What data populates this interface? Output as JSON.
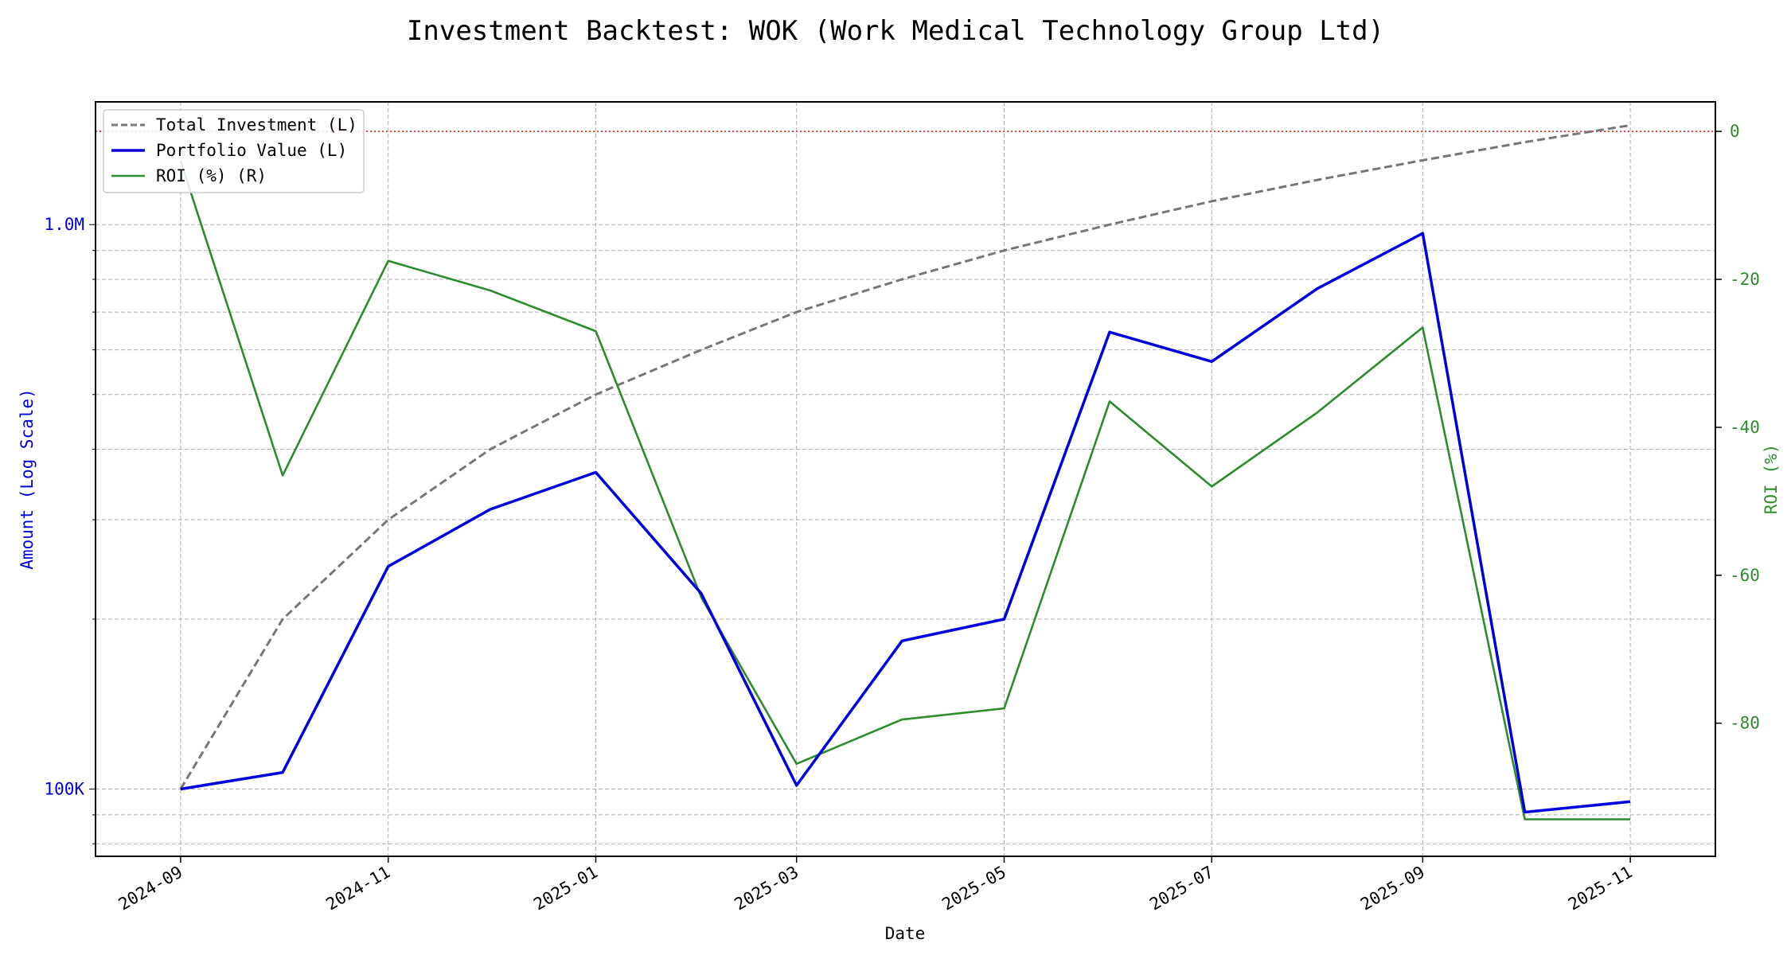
{
  "chart_data": {
    "type": "line",
    "title": "Investment Backtest: WOK (Work Medical Technology Group Ltd)",
    "xlabel": "Date",
    "ylabel_left": "Amount (Log Scale)",
    "ylabel_right": "ROI (%)",
    "y_left_scale": "log",
    "y_left_range": [
      76000,
      1650000
    ],
    "y_right_range": [
      -98,
      4
    ],
    "x_range": [
      "2024-08-07",
      "2025-11-26"
    ],
    "x_ticks": [
      "2024-09",
      "2024-11",
      "2025-01",
      "2025-03",
      "2025-05",
      "2025-07",
      "2025-09",
      "2025-11"
    ],
    "y_left_ticks": [
      {
        "value": 100000,
        "label": "100K"
      },
      {
        "value": 1000000,
        "label": "1.0M"
      }
    ],
    "y_right_ticks": [
      0,
      -20,
      -40,
      -60,
      -80
    ],
    "grid": true,
    "legend_position": "top-left",
    "reference_line": {
      "axis": "right",
      "value": 0,
      "color": "#ff0000",
      "style": "dotted"
    },
    "x": [
      "2024-09-01",
      "2024-10-01",
      "2024-11-01",
      "2024-12-01",
      "2025-01-01",
      "2025-02-01",
      "2025-03-01",
      "2025-04-01",
      "2025-05-01",
      "2025-06-01",
      "2025-07-01",
      "2025-08-01",
      "2025-09-01",
      "2025-10-01",
      "2025-11-01"
    ],
    "series": [
      {
        "name": "Total Investment (L)",
        "axis": "left",
        "color": "#777777",
        "style": "dashed",
        "values": [
          100000,
          200000,
          300000,
          400000,
          500000,
          600000,
          700000,
          800000,
          900000,
          1000000,
          1100000,
          1200000,
          1300000,
          1400000,
          1500000
        ]
      },
      {
        "name": "Portfolio Value (L)",
        "axis": "left",
        "color": "#0000dd",
        "style": "solid",
        "values": [
          100000,
          107000,
          248000,
          313000,
          364000,
          222000,
          101500,
          183000,
          200000,
          645000,
          572000,
          770000,
          965000,
          91000,
          95000
        ]
      },
      {
        "name": "ROI (%) (R)",
        "axis": "right",
        "color": "#2e8b2e",
        "style": "solid",
        "values": [
          -4,
          -46.5,
          -17.5,
          -21.5,
          -27,
          -63,
          -85.5,
          -79.5,
          -78,
          -36.5,
          -48,
          -38,
          -26.5,
          -93,
          -93
        ]
      }
    ]
  }
}
